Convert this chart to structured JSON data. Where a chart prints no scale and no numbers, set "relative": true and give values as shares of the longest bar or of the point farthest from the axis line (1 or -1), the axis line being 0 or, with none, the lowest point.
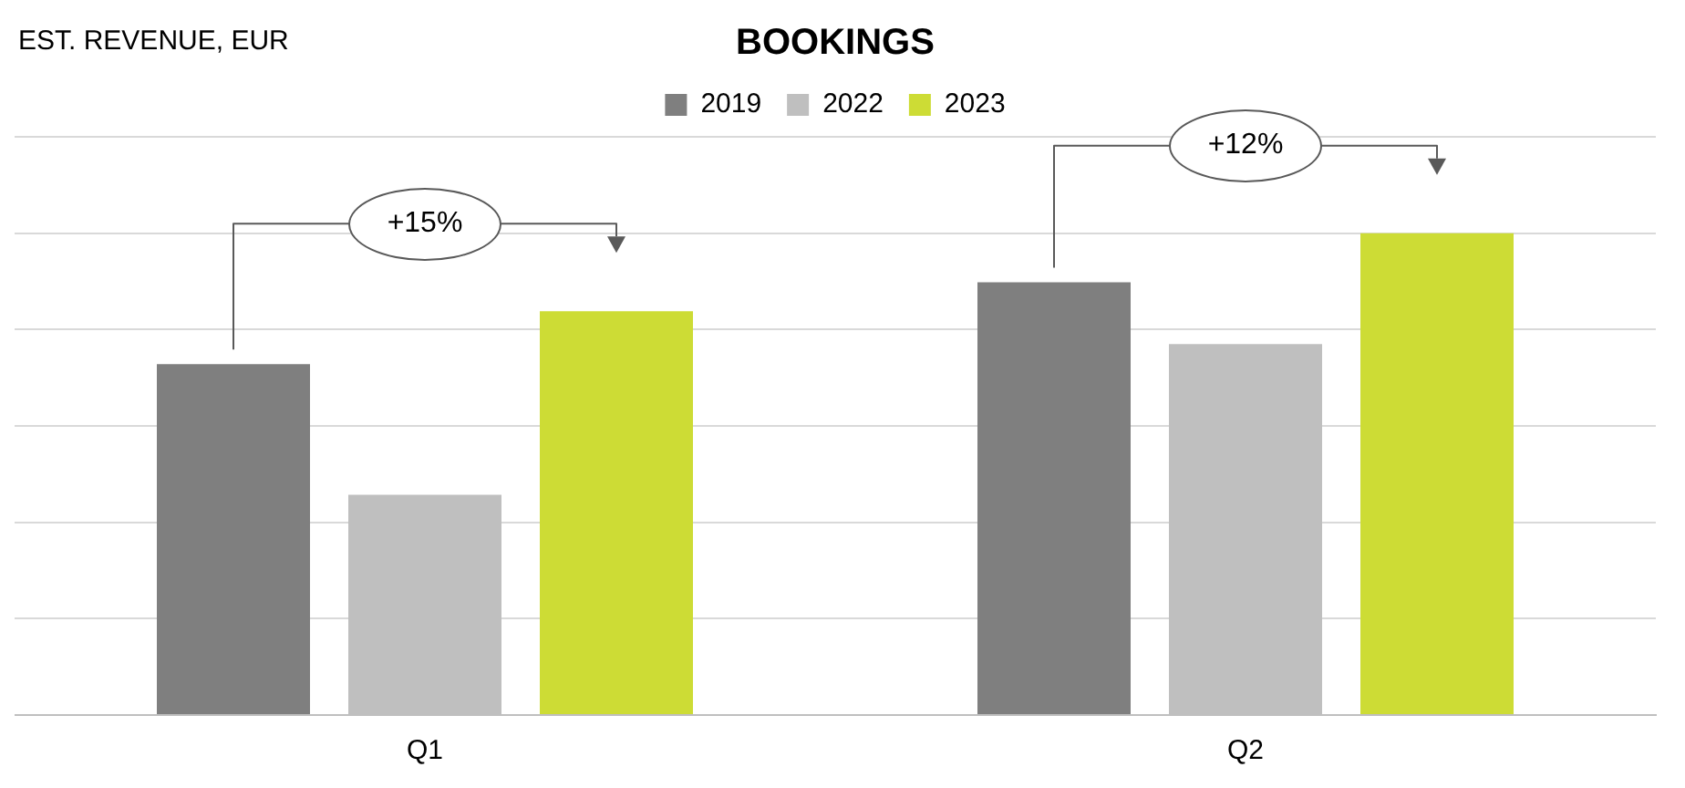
{
  "chart_data": {
    "type": "bar",
    "title": "BOOKINGS",
    "relative": true,
    "categories": [
      "Q1",
      "Q2"
    ],
    "series": [
      {
        "name": "2019",
        "color": "#7f7f7f",
        "values": [
          0.728,
          0.898
        ]
      },
      {
        "name": "2022",
        "color": "#bfbfbf",
        "values": [
          0.457,
          0.77
        ]
      },
      {
        "name": "2023",
        "color": "#cddc35",
        "values": [
          0.838,
          1
        ]
      }
    ],
    "annotations": [
      "EST. REVENUE, EUR",
      "+15%",
      "+12%"
    ],
    "grid": "y",
    "legend": "top"
  }
}
